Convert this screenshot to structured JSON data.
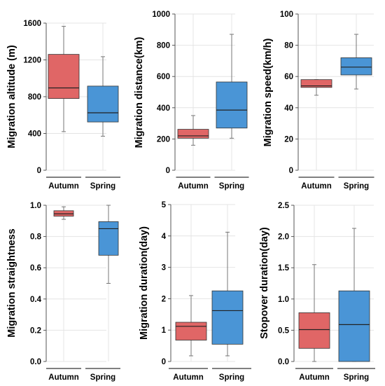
{
  "colors": {
    "autumn": "#e06666",
    "spring": "#4a95d6",
    "grid": "#e4e4e4",
    "axis": "#555555"
  },
  "chart_data": [
    {
      "type": "box",
      "ylabel": "Migration altitude (m)",
      "ylim": [
        0,
        1600
      ],
      "yticks": [
        "0",
        "400",
        "800",
        "1200",
        "1600"
      ],
      "ytick_values": [
        0,
        400,
        800,
        1200,
        1600
      ],
      "categories": [
        "Autumn",
        "Spring"
      ],
      "boxes": [
        {
          "name": "Autumn",
          "whisker_low": 420,
          "q1": 780,
          "median": 895,
          "q3": 1260,
          "whisker_high": 1565
        },
        {
          "name": "Spring",
          "whisker_low": 370,
          "q1": 525,
          "median": 625,
          "q3": 915,
          "whisker_high": 1235
        }
      ]
    },
    {
      "type": "box",
      "ylabel": "Migration distance(km)",
      "ylim": [
        0,
        1000
      ],
      "yticks": [
        "0",
        "200",
        "400",
        "600",
        "800",
        "1000"
      ],
      "ytick_values": [
        0,
        200,
        400,
        600,
        800,
        1000
      ],
      "categories": [
        "Autumn",
        "Spring"
      ],
      "boxes": [
        {
          "name": "Autumn",
          "whisker_low": 160,
          "q1": 205,
          "median": 220,
          "q3": 262,
          "whisker_high": 350
        },
        {
          "name": "Spring",
          "whisker_low": 205,
          "q1": 270,
          "median": 385,
          "q3": 565,
          "whisker_high": 870
        }
      ]
    },
    {
      "type": "box",
      "ylabel": "Migration speed(km/h)",
      "ylim": [
        0,
        100
      ],
      "yticks": [
        "0",
        "20",
        "40",
        "60",
        "80",
        "100"
      ],
      "ytick_values": [
        0,
        20,
        40,
        60,
        80,
        100
      ],
      "categories": [
        "Autumn",
        "Spring"
      ],
      "boxes": [
        {
          "name": "Autumn",
          "whisker_low": 48,
          "q1": 53,
          "median": 54,
          "q3": 58,
          "whisker_high": 58
        },
        {
          "name": "Spring",
          "whisker_low": 52,
          "q1": 61,
          "median": 66,
          "q3": 72,
          "whisker_high": 87
        }
      ]
    },
    {
      "type": "box",
      "ylabel": "Migration straightness",
      "ylim": [
        0,
        1.0
      ],
      "yticks": [
        "0.0",
        "0.2",
        "0.4",
        "0.6",
        "0.8",
        "1.0"
      ],
      "ytick_values": [
        0,
        0.2,
        0.4,
        0.6,
        0.8,
        1.0
      ],
      "categories": [
        "Autumn",
        "Spring"
      ],
      "boxes": [
        {
          "name": "Autumn",
          "whisker_low": 0.91,
          "q1": 0.93,
          "median": 0.945,
          "q3": 0.965,
          "whisker_high": 0.99
        },
        {
          "name": "Spring",
          "whisker_low": 0.5,
          "q1": 0.68,
          "median": 0.85,
          "q3": 0.895,
          "whisker_high": 1.0
        }
      ]
    },
    {
      "type": "box",
      "ylabel": "Migration duration(day)",
      "ylim": [
        0,
        5
      ],
      "yticks": [
        "0",
        "1",
        "2",
        "3",
        "4",
        "5"
      ],
      "ytick_values": [
        0,
        1,
        2,
        3,
        4,
        5
      ],
      "categories": [
        "Autumn",
        "Spring"
      ],
      "boxes": [
        {
          "name": "Autumn",
          "whisker_low": 0.18,
          "q1": 0.68,
          "median": 1.12,
          "q3": 1.25,
          "whisker_high": 2.1
        },
        {
          "name": "Spring",
          "whisker_low": 0.18,
          "q1": 0.55,
          "median": 1.62,
          "q3": 2.25,
          "whisker_high": 4.12
        }
      ]
    },
    {
      "type": "box",
      "ylabel": "Stopover duration(day)",
      "ylim": [
        0,
        2.5
      ],
      "yticks": [
        "0.0",
        "0.5",
        "1.0",
        "1.5",
        "2.0",
        "2.5"
      ],
      "ytick_values": [
        0,
        0.5,
        1.0,
        1.5,
        2.0,
        2.5
      ],
      "categories": [
        "Autumn",
        "Spring"
      ],
      "boxes": [
        {
          "name": "Autumn",
          "whisker_low": 0.0,
          "q1": 0.21,
          "median": 0.51,
          "q3": 0.78,
          "whisker_high": 1.55
        },
        {
          "name": "Spring",
          "whisker_low": 0.0,
          "q1": 0.0,
          "median": 0.59,
          "q3": 1.13,
          "whisker_high": 2.13
        }
      ]
    }
  ]
}
